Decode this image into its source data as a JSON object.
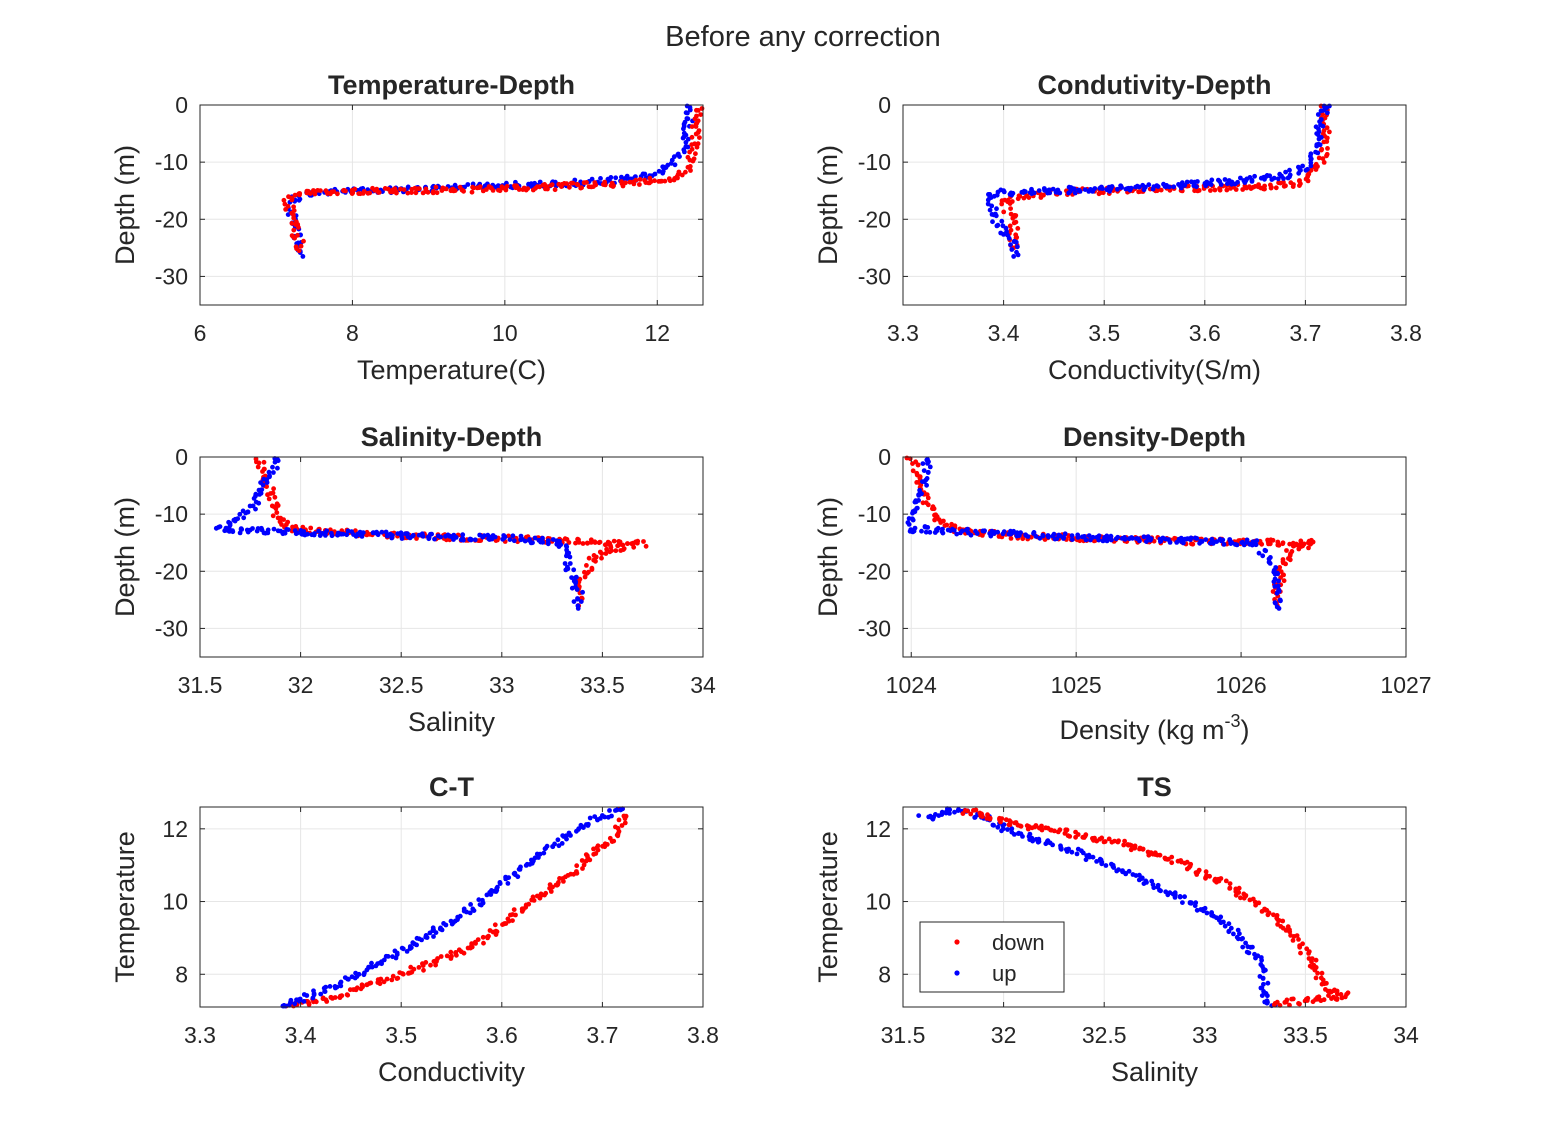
{
  "figure": {
    "suptitle": "Before any correction"
  },
  "legend": {
    "entries": [
      {
        "label": "down",
        "color": "#ff0000"
      },
      {
        "label": "up",
        "color": "#0000ff"
      }
    ],
    "placement": "lower-left of TS panel"
  },
  "colors": {
    "down": "#ff0000",
    "up": "#0000ff",
    "grid": "#e6e6e6",
    "axis": "#262626"
  },
  "chart_data": [
    {
      "id": "temp-depth",
      "type": "scatter",
      "title": "Temperature-Depth",
      "xlabel": "Temperature(C)",
      "ylabel": "Depth (m)",
      "xlim": [
        6,
        12.6
      ],
      "ylim": [
        -35,
        0
      ],
      "xticks": [
        6,
        8,
        10,
        12
      ],
      "yticks": [
        -30,
        -20,
        -10,
        0
      ],
      "grid": true,
      "series": [
        {
          "name": "down",
          "points": [
            [
              12.55,
              -0.5
            ],
            [
              12.5,
              -3
            ],
            [
              12.5,
              -6
            ],
            [
              12.45,
              -9
            ],
            [
              12.4,
              -11
            ],
            [
              12.3,
              -12.5
            ],
            [
              12.1,
              -13
            ],
            [
              11.8,
              -13.5
            ],
            [
              11.4,
              -13.8
            ],
            [
              11.0,
              -14.1
            ],
            [
              10.5,
              -14.4
            ],
            [
              10.0,
              -14.6
            ],
            [
              9.5,
              -14.8
            ],
            [
              9.0,
              -14.9
            ],
            [
              8.5,
              -15.0
            ],
            [
              8.0,
              -15.1
            ],
            [
              7.6,
              -15.3
            ],
            [
              7.3,
              -15.6
            ],
            [
              7.15,
              -16.5
            ],
            [
              7.2,
              -19
            ],
            [
              7.25,
              -22
            ],
            [
              7.3,
              -24
            ],
            [
              7.3,
              -25.5
            ]
          ]
        },
        {
          "name": "up",
          "points": [
            [
              12.45,
              0
            ],
            [
              12.4,
              -3
            ],
            [
              12.35,
              -7
            ],
            [
              12.2,
              -10
            ],
            [
              12.0,
              -12
            ],
            [
              11.7,
              -12.8
            ],
            [
              11.3,
              -13.3
            ],
            [
              10.8,
              -13.7
            ],
            [
              10.2,
              -14.0
            ],
            [
              9.6,
              -14.3
            ],
            [
              9.0,
              -14.6
            ],
            [
              8.4,
              -14.9
            ],
            [
              7.8,
              -15.2
            ],
            [
              7.4,
              -15.5
            ],
            [
              7.2,
              -16.5
            ],
            [
              7.2,
              -19
            ],
            [
              7.25,
              -22
            ],
            [
              7.3,
              -24.5
            ],
            [
              7.35,
              -26.5
            ]
          ]
        }
      ]
    },
    {
      "id": "cond-depth",
      "type": "scatter",
      "title": "Condutivity-Depth",
      "xlabel": "Conductivity(S/m)",
      "ylabel": "Depth (m)",
      "xlim": [
        3.3,
        3.8
      ],
      "ylim": [
        -35,
        0
      ],
      "xticks": [
        3.3,
        3.4,
        3.5,
        3.6,
        3.7,
        3.8
      ],
      "yticks": [
        -30,
        -20,
        -10,
        0
      ],
      "grid": true,
      "series": [
        {
          "name": "down",
          "points": [
            [
              3.72,
              -0.5
            ],
            [
              3.72,
              -4
            ],
            [
              3.72,
              -8
            ],
            [
              3.71,
              -11
            ],
            [
              3.7,
              -13.5
            ],
            [
              3.68,
              -14
            ],
            [
              3.65,
              -14.3
            ],
            [
              3.6,
              -14.6
            ],
            [
              3.55,
              -14.8
            ],
            [
              3.5,
              -15
            ],
            [
              3.45,
              -15.3
            ],
            [
              3.42,
              -16
            ],
            [
              3.4,
              -17
            ],
            [
              3.41,
              -20
            ],
            [
              3.41,
              -23
            ],
            [
              3.41,
              -25
            ]
          ]
        },
        {
          "name": "up",
          "points": [
            [
              3.72,
              0
            ],
            [
              3.715,
              -4
            ],
            [
              3.71,
              -8
            ],
            [
              3.7,
              -11
            ],
            [
              3.68,
              -12.3
            ],
            [
              3.65,
              -13
            ],
            [
              3.6,
              -13.8
            ],
            [
              3.55,
              -14.3
            ],
            [
              3.5,
              -14.7
            ],
            [
              3.45,
              -15
            ],
            [
              3.4,
              -15.3
            ],
            [
              3.385,
              -16
            ],
            [
              3.39,
              -19
            ],
            [
              3.4,
              -22
            ],
            [
              3.41,
              -24.5
            ],
            [
              3.41,
              -26.5
            ]
          ]
        }
      ]
    },
    {
      "id": "sal-depth",
      "type": "scatter",
      "title": "Salinity-Depth",
      "xlabel": "Salinity",
      "ylabel": "Depth (m)",
      "xlim": [
        31.5,
        34
      ],
      "ylim": [
        -35,
        0
      ],
      "xticks": [
        31.5,
        32,
        32.5,
        33,
        33.5,
        34
      ],
      "yticks": [
        -30,
        -20,
        -10,
        0
      ],
      "grid": true,
      "series": [
        {
          "name": "down",
          "points": [
            [
              31.8,
              0
            ],
            [
              31.82,
              -3
            ],
            [
              31.85,
              -6
            ],
            [
              31.87,
              -9
            ],
            [
              31.9,
              -11
            ],
            [
              31.95,
              -12.5
            ],
            [
              32.1,
              -13
            ],
            [
              32.4,
              -13.5
            ],
            [
              32.7,
              -14
            ],
            [
              33.0,
              -14.3
            ],
            [
              33.3,
              -14.6
            ],
            [
              33.5,
              -15
            ],
            [
              33.7,
              -15.2
            ],
            [
              33.55,
              -16
            ],
            [
              33.45,
              -18
            ],
            [
              33.4,
              -21
            ],
            [
              33.38,
              -24
            ],
            [
              33.38,
              -26
            ]
          ]
        },
        {
          "name": "up",
          "points": [
            [
              31.88,
              0
            ],
            [
              31.85,
              -3
            ],
            [
              31.8,
              -6
            ],
            [
              31.75,
              -9
            ],
            [
              31.68,
              -11
            ],
            [
              31.6,
              -12.7
            ],
            [
              31.9,
              -13
            ],
            [
              32.3,
              -13.5
            ],
            [
              32.7,
              -14
            ],
            [
              33.1,
              -14.3
            ],
            [
              33.3,
              -15
            ],
            [
              33.32,
              -18
            ],
            [
              33.35,
              -21
            ],
            [
              33.38,
              -24
            ],
            [
              33.38,
              -26.5
            ]
          ]
        }
      ]
    },
    {
      "id": "dens-depth",
      "type": "scatter",
      "title": "Density-Depth",
      "xlabel": "Density (kg m",
      "xlabel_sup": "-3",
      "xlabel_end": ")",
      "ylabel": "Depth (m)",
      "xlim": [
        1023.95,
        1027
      ],
      "ylim": [
        -35,
        0
      ],
      "xticks": [
        1024,
        1025,
        1026,
        1027
      ],
      "yticks": [
        -30,
        -20,
        -10,
        0
      ],
      "grid": true,
      "series": [
        {
          "name": "down",
          "points": [
            [
              1024.0,
              0
            ],
            [
              1024.05,
              -4
            ],
            [
              1024.1,
              -8
            ],
            [
              1024.15,
              -11
            ],
            [
              1024.3,
              -13
            ],
            [
              1024.6,
              -13.7
            ],
            [
              1025.0,
              -14.2
            ],
            [
              1025.4,
              -14.5
            ],
            [
              1025.8,
              -14.8
            ],
            [
              1026.2,
              -15
            ],
            [
              1026.45,
              -15.1
            ],
            [
              1026.3,
              -16
            ],
            [
              1026.25,
              -19
            ],
            [
              1026.22,
              -23
            ],
            [
              1026.22,
              -26
            ]
          ]
        },
        {
          "name": "up",
          "points": [
            [
              1024.1,
              0
            ],
            [
              1024.08,
              -4
            ],
            [
              1024.05,
              -8
            ],
            [
              1024.0,
              -11
            ],
            [
              1023.98,
              -12.5
            ],
            [
              1024.4,
              -13.2
            ],
            [
              1024.8,
              -13.8
            ],
            [
              1025.3,
              -14.3
            ],
            [
              1025.8,
              -14.7
            ],
            [
              1026.1,
              -15
            ],
            [
              1026.15,
              -17
            ],
            [
              1026.2,
              -20
            ],
            [
              1026.22,
              -23
            ],
            [
              1026.23,
              -26.5
            ]
          ]
        }
      ]
    },
    {
      "id": "ct",
      "type": "scatter",
      "title": "C-T",
      "xlabel": "Conductivity",
      "ylabel": "Temperature",
      "xlim": [
        3.3,
        3.8
      ],
      "ylim": [
        7.1,
        12.6
      ],
      "xticks": [
        3.3,
        3.4,
        3.5,
        3.6,
        3.7,
        3.8
      ],
      "yticks": [
        8,
        10,
        12
      ],
      "grid": true,
      "series": [
        {
          "name": "down",
          "points": [
            [
              3.39,
              7.1
            ],
            [
              3.42,
              7.3
            ],
            [
              3.46,
              7.6
            ],
            [
              3.5,
              8.0
            ],
            [
              3.54,
              8.4
            ],
            [
              3.58,
              8.9
            ],
            [
              3.61,
              9.6
            ],
            [
              3.64,
              10.2
            ],
            [
              3.67,
              10.8
            ],
            [
              3.69,
              11.3
            ],
            [
              3.71,
              11.7
            ],
            [
              3.72,
              12.2
            ],
            [
              3.72,
              12.55
            ]
          ]
        },
        {
          "name": "up",
          "points": [
            [
              3.38,
              7.1
            ],
            [
              3.41,
              7.4
            ],
            [
              3.45,
              7.9
            ],
            [
              3.49,
              8.5
            ],
            [
              3.53,
              9.1
            ],
            [
              3.57,
              9.8
            ],
            [
              3.6,
              10.5
            ],
            [
              3.63,
              11.1
            ],
            [
              3.66,
              11.7
            ],
            [
              3.69,
              12.2
            ],
            [
              3.72,
              12.55
            ]
          ]
        }
      ]
    },
    {
      "id": "ts",
      "type": "scatter",
      "title": "TS",
      "xlabel": "Salinity",
      "ylabel": "Temperature",
      "xlim": [
        31.5,
        34
      ],
      "ylim": [
        7.1,
        12.6
      ],
      "xticks": [
        31.5,
        32,
        32.5,
        33,
        33.5,
        34
      ],
      "yticks": [
        8,
        10,
        12
      ],
      "grid": true,
      "series": [
        {
          "name": "down",
          "points": [
            [
              31.8,
              12.5
            ],
            [
              32.0,
              12.2
            ],
            [
              32.3,
              11.9
            ],
            [
              32.6,
              11.6
            ],
            [
              32.9,
              11.0
            ],
            [
              33.1,
              10.5
            ],
            [
              33.3,
              9.8
            ],
            [
              33.45,
              9.0
            ],
            [
              33.55,
              8.2
            ],
            [
              33.6,
              7.6
            ],
            [
              33.7,
              7.4
            ],
            [
              33.45,
              7.25
            ],
            [
              33.35,
              7.2
            ]
          ]
        },
        {
          "name": "up",
          "points": [
            [
              31.6,
              12.3
            ],
            [
              31.75,
              12.5
            ],
            [
              31.9,
              12.3
            ],
            [
              32.1,
              11.8
            ],
            [
              32.4,
              11.3
            ],
            [
              32.7,
              10.6
            ],
            [
              32.95,
              9.9
            ],
            [
              33.15,
              9.2
            ],
            [
              33.25,
              8.5
            ],
            [
              33.3,
              7.8
            ],
            [
              33.3,
              7.3
            ],
            [
              33.35,
              7.15
            ]
          ]
        }
      ]
    }
  ]
}
